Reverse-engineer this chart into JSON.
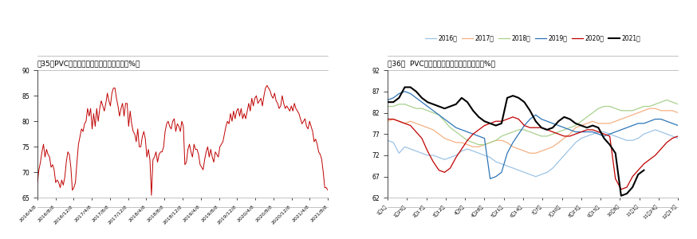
{
  "fig35_title": "图35：PVC生产企业开工率时间序列图示（%）",
  "fig36_title": "图36：  PVC生产企业周度开工季节性图示（%）",
  "fig35_ylim": [
    65,
    90
  ],
  "fig35_yticks": [
    65,
    70,
    75,
    80,
    85,
    90
  ],
  "fig35_xticks": [
    "2016/4/8",
    "2016/8/8",
    "2016/12/8",
    "2017/4/8",
    "2017/8/8",
    "2017/12/8",
    "2018/4/8",
    "2018/8/8",
    "2018/12/8",
    "2019/4/8",
    "2019/8/8",
    "2019/12/8",
    "2020/4/8",
    "2020/8/8",
    "2020/12/8",
    "2021/4/8",
    "2021/8/8"
  ],
  "fig35_line_color": "#C00000",
  "fig36_ylim": [
    62,
    92
  ],
  "fig36_yticks": [
    62,
    67,
    72,
    77,
    82,
    87,
    92
  ],
  "fig36_xticks": [
    "1月1日",
    "1月25日",
    "2月17日",
    "3月12日",
    "4月5日",
    "4月28日",
    "5月21日",
    "6月14日",
    "7月7日",
    "7月30日",
    "8月23日",
    "9月15日",
    "10月8日",
    "11月1日",
    "11月24日",
    "12月17日"
  ],
  "legend_labels": [
    "2016年",
    "2017年",
    "2018年",
    "2019年",
    "2020年",
    "2021年"
  ],
  "legend_colors": [
    "#9DC3E6",
    "#F4B183",
    "#A9D18E",
    "#2E75B6",
    "#C00000",
    "#000000"
  ],
  "fig35_data": [
    68.0,
    70.5,
    72.0,
    74.0,
    75.5,
    73.0,
    74.5,
    73.5,
    73.0,
    71.0,
    71.5,
    70.5,
    68.0,
    68.5,
    68.0,
    67.0,
    68.5,
    67.5,
    69.0,
    72.0,
    74.0,
    73.5,
    71.0,
    66.5,
    67.0,
    68.0,
    72.0,
    75.5,
    77.0,
    78.5,
    78.0,
    79.5,
    80.0,
    82.5,
    81.0,
    82.5,
    78.5,
    81.5,
    79.0,
    82.5,
    80.0,
    82.5,
    84.0,
    83.0,
    82.0,
    83.5,
    85.5,
    84.0,
    83.0,
    85.5,
    86.5,
    86.5,
    84.5,
    83.0,
    81.0,
    82.5,
    83.5,
    81.0,
    83.5,
    83.5,
    79.0,
    82.0,
    79.5,
    78.0,
    77.5,
    76.0,
    78.5,
    75.0,
    75.0,
    77.0,
    78.0,
    76.5,
    73.0,
    74.5,
    72.5,
    65.5,
    72.5,
    73.0,
    74.0,
    72.0,
    73.5,
    74.0,
    74.0,
    75.0,
    78.0,
    79.5,
    80.0,
    79.0,
    78.5,
    80.0,
    80.5,
    78.0,
    79.5,
    79.0,
    78.0,
    80.0,
    79.0,
    71.5,
    72.0,
    74.5,
    75.5,
    74.0,
    73.0,
    75.5,
    74.5,
    74.5,
    73.5,
    71.5,
    71.0,
    70.5,
    72.5,
    74.0,
    75.0,
    73.0,
    74.5,
    73.0,
    72.0,
    74.0,
    73.5,
    73.0,
    75.0,
    75.5,
    76.0,
    77.5,
    79.0,
    80.0,
    79.5,
    81.5,
    80.0,
    82.0,
    80.5,
    82.0,
    82.5,
    81.0,
    82.5,
    80.5,
    81.5,
    80.5,
    82.0,
    83.5,
    82.0,
    84.5,
    83.0,
    84.5,
    85.0,
    83.5,
    84.0,
    84.5,
    83.0,
    85.0,
    86.5,
    87.0,
    86.5,
    86.0,
    85.0,
    84.5,
    85.5,
    84.0,
    83.5,
    82.5,
    83.0,
    85.0,
    83.5,
    82.5,
    83.0,
    82.5,
    82.0,
    83.0,
    82.0,
    83.5,
    82.5,
    82.0,
    81.5,
    80.5,
    79.5,
    80.0,
    80.5,
    79.0,
    78.5,
    80.0,
    79.0,
    78.0,
    76.0,
    76.5,
    75.5,
    74.0,
    73.5,
    72.5,
    70.0,
    67.0,
    67.0,
    66.5
  ],
  "fig36_series": {
    "2016": [
      75.5,
      75.0,
      72.5,
      74.0,
      73.5,
      73.0,
      72.5,
      72.0,
      72.0,
      71.5,
      71.0,
      71.5,
      72.0,
      73.0,
      73.5,
      73.0,
      72.5,
      72.0,
      71.5,
      70.5,
      70.0,
      69.5,
      69.0,
      68.5,
      68.0,
      67.5,
      67.0,
      67.5,
      68.0,
      69.0,
      70.5,
      72.0,
      73.5,
      75.0,
      76.0,
      76.5,
      77.0,
      77.5,
      77.5,
      77.0,
      76.5,
      76.0,
      75.5,
      75.5,
      76.0,
      77.0,
      77.5,
      78.0,
      77.5,
      77.0,
      76.5,
      76.0
    ],
    "2017": [
      80.0,
      80.5,
      80.0,
      79.5,
      80.0,
      79.5,
      79.0,
      78.5,
      78.0,
      77.0,
      76.0,
      75.5,
      75.0,
      75.0,
      74.5,
      74.0,
      74.0,
      74.5,
      75.0,
      75.5,
      75.5,
      75.0,
      74.0,
      73.5,
      73.0,
      72.5,
      72.5,
      73.0,
      73.5,
      74.0,
      75.0,
      76.0,
      77.0,
      78.5,
      79.0,
      79.5,
      80.0,
      79.5,
      79.5,
      79.5,
      80.0,
      80.5,
      81.0,
      81.5,
      82.0,
      82.5,
      83.0,
      83.0,
      82.5,
      82.5,
      82.5,
      82.0
    ],
    "2018": [
      83.5,
      83.5,
      84.0,
      84.0,
      83.5,
      83.0,
      83.0,
      82.5,
      82.0,
      81.5,
      80.0,
      78.5,
      77.5,
      76.5,
      75.5,
      75.0,
      74.5,
      74.5,
      75.0,
      75.5,
      76.5,
      77.0,
      77.5,
      78.0,
      78.0,
      77.5,
      77.0,
      76.5,
      76.5,
      77.0,
      77.5,
      78.0,
      78.5,
      79.0,
      80.0,
      81.0,
      82.0,
      83.0,
      83.5,
      83.5,
      83.0,
      82.5,
      82.5,
      82.5,
      83.0,
      83.5,
      83.5,
      84.0,
      84.5,
      85.0,
      84.5,
      84.0
    ],
    "2019": [
      85.0,
      85.5,
      86.5,
      87.0,
      86.5,
      85.5,
      84.5,
      83.5,
      82.5,
      81.5,
      80.5,
      79.5,
      78.5,
      78.0,
      77.5,
      77.0,
      76.5,
      76.0,
      66.5,
      67.0,
      68.0,
      72.5,
      75.0,
      77.0,
      79.0,
      80.5,
      81.5,
      80.5,
      80.0,
      79.5,
      79.0,
      78.5,
      78.0,
      77.5,
      77.5,
      77.5,
      77.5,
      77.0,
      76.5,
      77.0,
      77.5,
      78.0,
      78.5,
      79.0,
      79.5,
      79.5,
      80.0,
      80.5,
      80.5,
      80.0,
      79.5,
      79.0
    ],
    "2020": [
      80.5,
      80.5,
      80.0,
      79.5,
      79.0,
      77.5,
      76.0,
      73.0,
      70.5,
      68.5,
      68.0,
      69.0,
      71.5,
      73.5,
      75.5,
      77.0,
      78.0,
      79.0,
      79.5,
      80.0,
      80.0,
      80.5,
      81.0,
      80.5,
      79.0,
      78.5,
      78.5,
      78.5,
      78.0,
      77.5,
      77.0,
      76.5,
      76.5,
      77.0,
      77.5,
      78.0,
      78.0,
      77.5,
      77.0,
      76.5,
      66.5,
      64.0,
      64.5,
      67.0,
      68.5,
      70.0,
      71.0,
      72.0,
      73.5,
      75.0,
      76.0,
      76.5
    ],
    "2021": [
      84.5,
      84.5,
      85.5,
      88.0,
      88.0,
      87.0,
      85.5,
      84.5,
      84.0,
      83.5,
      83.0,
      83.5,
      84.0,
      85.5,
      84.5,
      82.5,
      81.0,
      80.0,
      79.5,
      79.0,
      79.5,
      85.5,
      86.0,
      85.5,
      84.5,
      82.5,
      80.0,
      78.5,
      78.0,
      78.5,
      80.0,
      81.0,
      80.5,
      79.5,
      79.0,
      78.5,
      79.0,
      78.5,
      76.0,
      74.5,
      72.5,
      62.5,
      63.0,
      64.5,
      67.5,
      68.5,
      null,
      null,
      null,
      null,
      null,
      null
    ]
  },
  "background_color": "#FFFFFF",
  "title_line_color": "#AAAAAA",
  "bottom_line_color": "#AAAAAA"
}
